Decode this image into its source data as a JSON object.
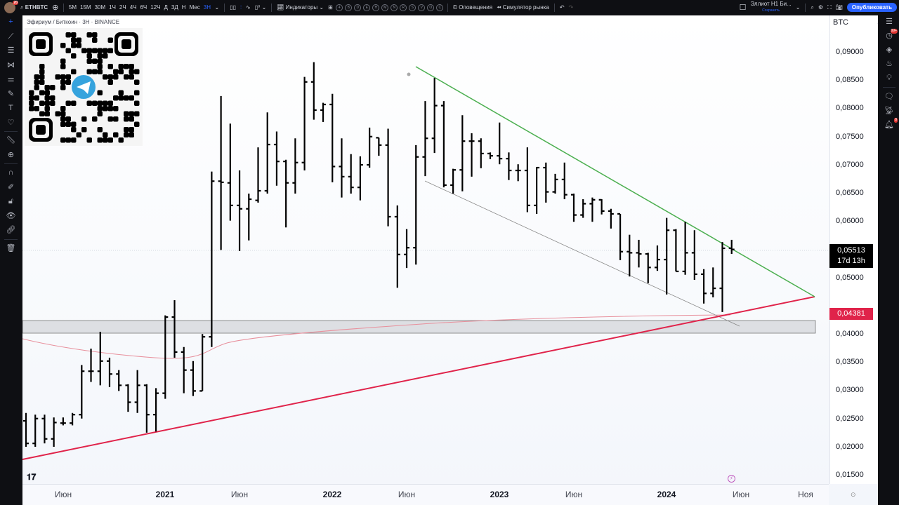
{
  "topbar": {
    "notifications": "20",
    "symbol": "ETHBTC",
    "intervals": [
      "5М",
      "15М",
      "30М",
      "1Ч",
      "2Ч",
      "4Ч",
      "6Ч",
      "12Ч",
      "Д",
      "3Д",
      "Н",
      "Мес",
      "3Н"
    ],
    "active_interval": "3Н",
    "indicators": "Индикаторы",
    "circle_buttons": [
      "4",
      "B",
      "D",
      "E",
      "H",
      "M",
      "N",
      "R",
      "S",
      "V",
      "O",
      "C"
    ],
    "alerts": "Оповещения",
    "replay": "Симулятор рынка",
    "layout_name": "Эллиот Н1 Би...",
    "layout_status": "Сохранить",
    "publish": "Опубликовать"
  },
  "legend": {
    "title": "Эфириум / Биткоин · 3Н · BINANCE"
  },
  "price_axis": {
    "currency": "BTC",
    "labels": [
      "0,09000",
      "0,08500",
      "0,08000",
      "0,07500",
      "0,07000",
      "0,06500",
      "0,06000",
      "0,05000",
      "0,04000",
      "0,03500",
      "0,03000",
      "0,02500",
      "0,02000",
      "0,01500"
    ],
    "current_price": "0,05513",
    "countdown": "17d 13h",
    "ma_price": "0,04381",
    "current_color": "#000000",
    "ma_color": "#e0234a"
  },
  "time_axis": {
    "labels": [
      {
        "t": "Июн",
        "y": false
      },
      {
        "t": "2021",
        "y": true
      },
      {
        "t": "Июн",
        "y": false
      },
      {
        "t": "2022",
        "y": true
      },
      {
        "t": "Июн",
        "y": false
      },
      {
        "t": "2023",
        "y": true
      },
      {
        "t": "Июн",
        "y": false
      },
      {
        "t": "2024",
        "y": true
      },
      {
        "t": "Июн",
        "y": false
      },
      {
        "t": "Ноя",
        "y": false
      }
    ]
  },
  "right_sidebar": {
    "badge_ideas": "99+",
    "badge_alerts": "8"
  },
  "colors": {
    "resistance": "#4caf50",
    "support": "#e0234a",
    "channel": "#888888",
    "ma": "#e8909c",
    "zone": "#d6d8dc"
  },
  "chart_data": {
    "type": "ohlc",
    "symbol": "ETHBTC",
    "interval": "3Н",
    "ylim": [
      0.015,
      0.0925
    ],
    "bars": [
      [
        0.0247,
        0.0261,
        0.0201,
        0.0207
      ],
      [
        0.0207,
        0.0258,
        0.0201,
        0.0251
      ],
      [
        0.0251,
        0.0258,
        0.0207,
        0.0215
      ],
      [
        0.0215,
        0.0253,
        0.0201,
        0.0244
      ],
      [
        0.0243,
        0.0253,
        0.0239,
        0.0243
      ],
      [
        0.0243,
        0.0261,
        0.0239,
        0.0258
      ],
      [
        0.0258,
        0.0346,
        0.0251,
        0.0335
      ],
      [
        0.0335,
        0.0375,
        0.0316,
        0.0335
      ],
      [
        0.0335,
        0.0405,
        0.031,
        0.0353
      ],
      [
        0.0353,
        0.0359,
        0.0307,
        0.033
      ],
      [
        0.033,
        0.0337,
        0.03,
        0.031
      ],
      [
        0.031,
        0.0312,
        0.0263,
        0.028
      ],
      [
        0.028,
        0.0337,
        0.0261,
        0.031
      ],
      [
        0.031,
        0.0312,
        0.0226,
        0.0258
      ],
      [
        0.0258,
        0.0305,
        0.0228,
        0.0296
      ],
      [
        0.0296,
        0.0434,
        0.0286,
        0.0431
      ],
      [
        0.0431,
        0.0461,
        0.0359,
        0.0369
      ],
      [
        0.0369,
        0.0378,
        0.0296,
        0.0337
      ],
      [
        0.0337,
        0.0353,
        0.0291,
        0.03
      ],
      [
        0.03,
        0.0401,
        0.03,
        0.0396
      ],
      [
        0.0396,
        0.0689,
        0.0378,
        0.0672
      ],
      [
        0.0672,
        0.0823,
        0.055,
        0.067
      ],
      [
        0.0669,
        0.0774,
        0.0602,
        0.0629
      ],
      [
        0.0629,
        0.0691,
        0.0548,
        0.0623
      ],
      [
        0.0623,
        0.065,
        0.0567,
        0.064
      ],
      [
        0.0638,
        0.0732,
        0.0634,
        0.0655
      ],
      [
        0.0655,
        0.0794,
        0.065,
        0.0737
      ],
      [
        0.0737,
        0.076,
        0.0664,
        0.0707
      ],
      [
        0.0707,
        0.071,
        0.059,
        0.0669
      ],
      [
        0.0669,
        0.0748,
        0.065,
        0.0705
      ],
      [
        0.0705,
        0.0857,
        0.0691,
        0.0848
      ],
      [
        0.0848,
        0.0883,
        0.0781,
        0.0798
      ],
      [
        0.0798,
        0.0811,
        0.0777,
        0.0808
      ],
      [
        0.0808,
        0.0827,
        0.067,
        0.0698
      ],
      [
        0.0698,
        0.0748,
        0.0643,
        0.068
      ],
      [
        0.068,
        0.072,
        0.065,
        0.0661
      ],
      [
        0.0661,
        0.0716,
        0.0638,
        0.0701
      ],
      [
        0.0701,
        0.0767,
        0.0696,
        0.0751
      ],
      [
        0.0749,
        0.0749,
        0.0717,
        0.0736
      ],
      [
        0.0736,
        0.0765,
        0.0592,
        0.0609
      ],
      [
        0.0609,
        0.0629,
        0.0483,
        0.0542
      ],
      [
        0.0542,
        0.0587,
        0.0518,
        0.0554
      ],
      [
        0.0554,
        0.0736,
        0.0524,
        0.0715
      ],
      [
        0.0715,
        0.0814,
        0.0681,
        0.0748
      ],
      [
        0.0748,
        0.0855,
        0.0722,
        0.0806
      ],
      [
        0.0806,
        0.0814,
        0.0661,
        0.0665
      ],
      [
        0.0665,
        0.0694,
        0.065,
        0.0692
      ],
      [
        0.0692,
        0.0789,
        0.0654,
        0.0743
      ],
      [
        0.0743,
        0.0757,
        0.068,
        0.0743
      ],
      [
        0.0743,
        0.0748,
        0.0695,
        0.0721
      ],
      [
        0.0721,
        0.0723,
        0.0711,
        0.0717
      ],
      [
        0.0717,
        0.0776,
        0.0702,
        0.0712
      ],
      [
        0.0712,
        0.0723,
        0.0674,
        0.0691
      ],
      [
        0.0691,
        0.0702,
        0.0672,
        0.0691
      ],
      [
        0.0691,
        0.0732,
        0.0617,
        0.0629
      ],
      [
        0.0629,
        0.0697,
        0.0614,
        0.0696
      ],
      [
        0.0696,
        0.0705,
        0.0634,
        0.0653
      ],
      [
        0.0653,
        0.0685,
        0.065,
        0.0675
      ],
      [
        0.0675,
        0.0705,
        0.064,
        0.0648
      ],
      [
        0.0648,
        0.065,
        0.06,
        0.0612
      ],
      [
        0.0612,
        0.064,
        0.0607,
        0.0632
      ],
      [
        0.0632,
        0.0643,
        0.06,
        0.0639
      ],
      [
        0.0639,
        0.064,
        0.0613,
        0.0619
      ],
      [
        0.0619,
        0.0623,
        0.0588,
        0.0614
      ],
      [
        0.0614,
        0.0614,
        0.0532,
        0.0547
      ],
      [
        0.0547,
        0.0577,
        0.0503,
        0.0545
      ],
      [
        0.0545,
        0.0568,
        0.0519,
        0.0543
      ],
      [
        0.0543,
        0.0545,
        0.0491,
        0.0519
      ],
      [
        0.0519,
        0.0558,
        0.0513,
        0.0533
      ],
      [
        0.0533,
        0.0607,
        0.0471,
        0.0585
      ],
      [
        0.0585,
        0.0587,
        0.0512,
        0.0512
      ],
      [
        0.0512,
        0.06,
        0.0506,
        0.0545
      ],
      [
        0.0545,
        0.0585,
        0.0497,
        0.0507
      ],
      [
        0.0507,
        0.0516,
        0.0455,
        0.0473
      ],
      [
        0.0473,
        0.0519,
        0.0466,
        0.0482
      ],
      [
        0.0482,
        0.0564,
        0.044,
        0.0553
      ],
      [
        0.0553,
        0.0568,
        0.0543,
        0.0551
      ]
    ],
    "bar_format": [
      "open",
      "high",
      "low",
      "close"
    ]
  }
}
